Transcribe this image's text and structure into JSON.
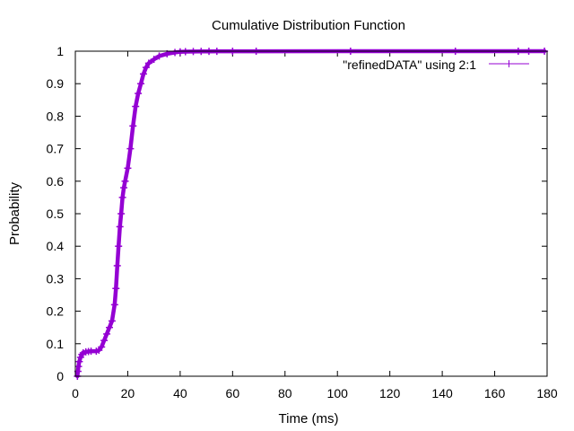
{
  "chart_data": {
    "type": "line",
    "title": "Cumulative Distribution Function",
    "xlabel": "Time (ms)",
    "ylabel": "Probability",
    "xlim": [
      0,
      180
    ],
    "ylim": [
      0,
      1
    ],
    "xticks": [
      0,
      20,
      40,
      60,
      80,
      100,
      120,
      140,
      160,
      180
    ],
    "yticks": [
      0,
      0.1,
      0.2,
      0.3,
      0.4,
      0.5,
      0.6,
      0.7,
      0.8,
      0.9,
      1
    ],
    "xtick_labels": [
      "0",
      "20",
      "40",
      "60",
      "80",
      "100",
      "120",
      "140",
      "160",
      "180"
    ],
    "ytick_labels": [
      "0",
      "0.1",
      "0.2",
      "0.3",
      "0.4",
      "0.5",
      "0.6",
      "0.7",
      "0.8",
      "0.9",
      "1"
    ],
    "grid": false,
    "legend_position": "top-right",
    "series": [
      {
        "name": "\"refinedDATA\" using 2:1",
        "color": "#9400d3",
        "marker": "plus",
        "x": [
          0.8,
          1.0,
          1.2,
          1.5,
          2.0,
          2.5,
          3.0,
          4.0,
          5.0,
          6.0,
          8.0,
          9.0,
          10.0,
          11.0,
          12.0,
          13.0,
          14.0,
          15.0,
          15.5,
          16.0,
          16.5,
          17.0,
          17.5,
          18.0,
          18.5,
          19.0,
          20.0,
          21.0,
          22.0,
          23.0,
          24.0,
          25.0,
          26.0,
          27.0,
          28.0,
          30.0,
          32.0,
          35.0,
          38.0,
          40.0,
          42.0,
          45.0,
          48.0,
          51.0,
          54.0,
          60.0,
          69.0,
          105.0,
          145.0,
          169.0,
          173.0,
          179.0
        ],
        "y": [
          0.0,
          0.015,
          0.03,
          0.045,
          0.058,
          0.067,
          0.072,
          0.075,
          0.076,
          0.077,
          0.077,
          0.08,
          0.09,
          0.11,
          0.13,
          0.15,
          0.17,
          0.22,
          0.27,
          0.34,
          0.4,
          0.46,
          0.5,
          0.55,
          0.58,
          0.6,
          0.64,
          0.7,
          0.77,
          0.83,
          0.87,
          0.9,
          0.93,
          0.95,
          0.963,
          0.975,
          0.985,
          0.992,
          0.996,
          0.998,
          0.9985,
          0.999,
          0.9993,
          0.9995,
          0.9996,
          0.9997,
          0.9998,
          0.9999,
          0.9999,
          1.0,
          1.0,
          1.0
        ]
      }
    ]
  }
}
